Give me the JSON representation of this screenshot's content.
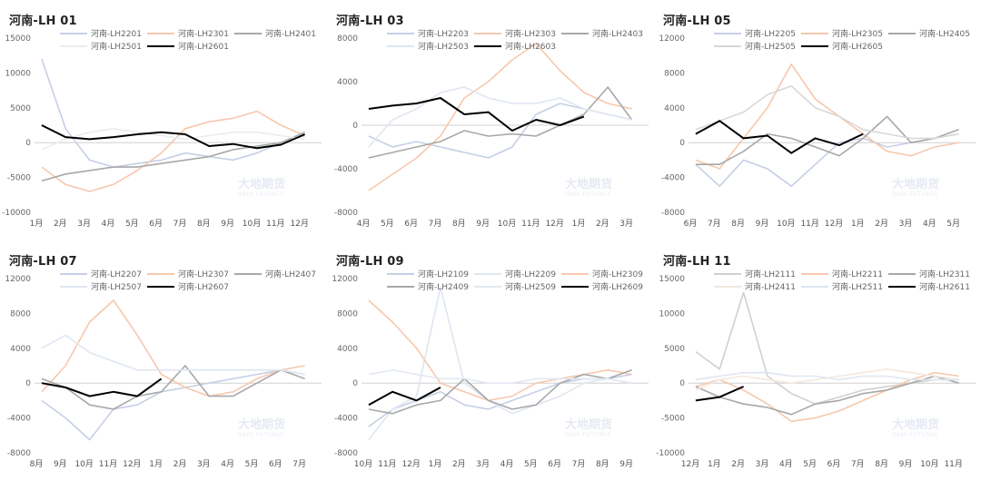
{
  "series_styles": {
    "2201": {
      "color": "#c5cfe6"
    },
    "2301": {
      "color": "#f6c8ad"
    },
    "2401": {
      "color": "#a8a8a8"
    },
    "2501": {
      "color": "#ececec"
    },
    "2601": {
      "color": "#000000"
    },
    "2203": {
      "color": "#c5cfe6"
    },
    "2303": {
      "color": "#f6c8ad"
    },
    "2403": {
      "color": "#a8a8a8"
    },
    "2503": {
      "color": "#dfe6f2"
    },
    "2603": {
      "color": "#000000"
    },
    "2205": {
      "color": "#c5cfe6"
    },
    "2305": {
      "color": "#f6c8ad"
    },
    "2405": {
      "color": "#a8a8a8"
    },
    "2505": {
      "color": "#d8d8d8"
    },
    "2605": {
      "color": "#000000"
    },
    "2207": {
      "color": "#c5cfe6"
    },
    "2307": {
      "color": "#f6c8ad"
    },
    "2407": {
      "color": "#a8a8a8"
    },
    "2507": {
      "color": "#dfe6f2"
    },
    "2607": {
      "color": "#000000"
    },
    "2109": {
      "color": "#c5cfe6"
    },
    "2209": {
      "color": "#dfe6f2"
    },
    "2309": {
      "color": "#f6c8ad"
    },
    "2409": {
      "color": "#a8a8a8"
    },
    "2509": {
      "color": "#e2e8f2"
    },
    "2609": {
      "color": "#000000"
    },
    "2111": {
      "color": "#d0d0d0"
    },
    "2211": {
      "color": "#f6c8ad"
    },
    "2311": {
      "color": "#a8a8a8"
    },
    "2411": {
      "color": "#f3e8de"
    },
    "2511": {
      "color": "#dfe6f2"
    },
    "2611": {
      "color": "#000000"
    }
  },
  "watermark": {
    "cn": "大地期货",
    "en": "DADI FUTURES"
  },
  "chart_data": [
    {
      "type": "line",
      "title": "河南-LH 01",
      "categories": [
        "1月",
        "2月",
        "3月",
        "4月",
        "5月",
        "6月",
        "7月",
        "8月",
        "9月",
        "10月",
        "11月",
        "12月"
      ],
      "ylim": [
        -10000,
        15000
      ],
      "yticks": [
        15000,
        10000,
        5000,
        0,
        -5000,
        -10000
      ],
      "ytick_labels": [
        "15000",
        "10000",
        "5000",
        "0",
        "-5000",
        "-10000"
      ],
      "series": [
        {
          "name": "河南-LH2201",
          "key": "2201",
          "values": [
            12000,
            2000,
            -2500,
            -3500,
            -3000,
            -2500,
            -1500,
            -2000,
            -2500,
            -1500,
            0,
            1000
          ]
        },
        {
          "name": "河南-LH2301",
          "key": "2301",
          "values": [
            -3500,
            -6000,
            -7000,
            -6000,
            -4000,
            -1500,
            2000,
            3000,
            3500,
            4500,
            2500,
            1000
          ]
        },
        {
          "name": "河南-LH2401",
          "key": "2401",
          "values": [
            -5500,
            -4500,
            -4000,
            -3500,
            -3500,
            -3000,
            -2500,
            -2000,
            -1000,
            -500,
            0,
            1500
          ]
        },
        {
          "name": "河南-LH2501",
          "key": "2501",
          "values": [
            -1000,
            500,
            1500,
            2000,
            1500,
            1000,
            500,
            1000,
            1500,
            1500,
            1000,
            500
          ]
        },
        {
          "name": "河南-LH2601",
          "key": "2601",
          "values": [
            2500,
            800,
            500,
            800,
            1200,
            1500,
            1200,
            -500,
            -200,
            -800,
            -300,
            1200
          ]
        }
      ]
    },
    {
      "type": "line",
      "title": "河南-LH 03",
      "categories": [
        "4月",
        "5月",
        "6月",
        "7月",
        "8月",
        "9月",
        "10月",
        "11月",
        "12月",
        "1月",
        "2月",
        "3月"
      ],
      "ylim": [
        -8000,
        8000
      ],
      "yticks": [
        8000,
        4000,
        0,
        -4000,
        -8000
      ],
      "ytick_labels": [
        "8000",
        "4000",
        "0",
        "-4000",
        "-8000"
      ],
      "series": [
        {
          "name": "河南-LH2203",
          "key": "2203",
          "values": [
            -1000,
            -2000,
            -1500,
            -2000,
            -2500,
            -3000,
            -2000,
            1000,
            2000,
            1500,
            1000,
            500
          ]
        },
        {
          "name": "河南-LH2303",
          "key": "2303",
          "values": [
            -6000,
            -4500,
            -3000,
            -1000,
            2500,
            4000,
            6000,
            7500,
            5000,
            3000,
            2000,
            1500
          ]
        },
        {
          "name": "河南-LH2403",
          "key": "2403",
          "values": [
            -3000,
            -2500,
            -2000,
            -1500,
            -500,
            -1000,
            -800,
            -1000,
            0,
            1000,
            3500,
            500
          ]
        },
        {
          "name": "河南-LH2503",
          "key": "2503",
          "values": [
            -2000,
            500,
            1500,
            3000,
            3500,
            2500,
            2000,
            2000,
            2500,
            1500,
            1000,
            500
          ]
        },
        {
          "name": "河南-LH2603",
          "key": "2603",
          "values": [
            1500,
            1800,
            2000,
            2500,
            1000,
            1200,
            -500,
            500,
            0,
            800,
            null,
            null
          ]
        }
      ]
    },
    {
      "type": "line",
      "title": "河南-LH 05",
      "categories": [
        "6月",
        "7月",
        "8月",
        "9月",
        "10月",
        "11月",
        "12月",
        "1月",
        "2月",
        "3月",
        "4月",
        "5月"
      ],
      "ylim": [
        -8000,
        12000
      ],
      "yticks": [
        12000,
        8000,
        4000,
        0,
        -4000,
        -8000
      ],
      "ytick_labels": [
        "12000",
        "8000",
        "4000",
        "0",
        "-4000",
        "-8000"
      ],
      "series": [
        {
          "name": "河南-LH2205",
          "key": "2205",
          "values": [
            -2500,
            -5000,
            -2000,
            -3000,
            -5000,
            -2500,
            0,
            500,
            -500,
            0,
            500,
            1000
          ]
        },
        {
          "name": "河南-LH2305",
          "key": "2305",
          "values": [
            -2000,
            -3000,
            500,
            4000,
            9000,
            5000,
            3000,
            1000,
            -1000,
            -1500,
            -500,
            0
          ]
        },
        {
          "name": "河南-LH2405",
          "key": "2405",
          "values": [
            -2500,
            -2500,
            -1000,
            1000,
            500,
            -500,
            -1500,
            500,
            3000,
            0,
            500,
            1500
          ]
        },
        {
          "name": "河南-LH2505",
          "key": "2505",
          "values": [
            1500,
            2500,
            3500,
            5500,
            6500,
            4000,
            3000,
            1500,
            1000,
            500,
            500,
            1000
          ]
        },
        {
          "name": "河南-LH2605",
          "key": "2605",
          "values": [
            1000,
            2500,
            500,
            800,
            -1200,
            500,
            -300,
            1000,
            null,
            null,
            null,
            null
          ]
        }
      ]
    },
    {
      "type": "line",
      "title": "河南-LH 07",
      "categories": [
        "8月",
        "9月",
        "10月",
        "11月",
        "12月",
        "1月",
        "2月",
        "3月",
        "4月",
        "5月",
        "6月",
        "7月"
      ],
      "ylim": [
        -8000,
        12000
      ],
      "yticks": [
        12000,
        8000,
        4000,
        0,
        -4000,
        -8000
      ],
      "ytick_labels": [
        "12000",
        "8000",
        "4000",
        "0",
        "-4000",
        "-8000"
      ],
      "series": [
        {
          "name": "河南-LH2207",
          "key": "2207",
          "values": [
            -2000,
            -4000,
            -6500,
            -3000,
            -2500,
            -1000,
            -500,
            0,
            500,
            1000,
            1500,
            1000
          ]
        },
        {
          "name": "河南-LH2307",
          "key": "2307",
          "values": [
            -1000,
            2000,
            7000,
            9500,
            5500,
            1000,
            -500,
            -1500,
            -1000,
            500,
            1500,
            2000
          ]
        },
        {
          "name": "河南-LH2407",
          "key": "2407",
          "values": [
            500,
            -500,
            -2500,
            -3000,
            -1500,
            -1000,
            2000,
            -1500,
            -1500,
            0,
            1500,
            500
          ]
        },
        {
          "name": "河南-LH2507",
          "key": "2507",
          "values": [
            4000,
            5500,
            3500,
            2500,
            1500,
            1500,
            1500,
            1500,
            1500,
            1500,
            1500,
            1000
          ]
        },
        {
          "name": "河南-LH2607",
          "key": "2607",
          "values": [
            0,
            -500,
            -1500,
            -1000,
            -1500,
            500,
            null,
            null,
            null,
            null,
            null,
            null
          ]
        }
      ]
    },
    {
      "type": "line",
      "title": "河南-LH 09",
      "categories": [
        "10月",
        "11月",
        "12月",
        "1月",
        "2月",
        "3月",
        "4月",
        "5月",
        "6月",
        "7月",
        "8月",
        "9月"
      ],
      "ylim": [
        -8000,
        12000
      ],
      "yticks": [
        12000,
        8000,
        4000,
        0,
        -4000,
        -8000
      ],
      "ytick_labels": [
        "12000",
        "8000",
        "4000",
        "0",
        "-4000",
        "-8000"
      ],
      "series": [
        {
          "name": "河南-LH2109",
          "key": "2109",
          "values": [
            -5000,
            -3000,
            -2000,
            -1000,
            -2500,
            -3000,
            -2000,
            -1000,
            0,
            500,
            500,
            1000
          ]
        },
        {
          "name": "河南-LH2209",
          "key": "2209",
          "values": [
            -6500,
            -3000,
            -1500,
            11000,
            0,
            -2000,
            -3500,
            -2500,
            -1500,
            0,
            500,
            0
          ]
        },
        {
          "name": "河南-LH2309",
          "key": "2309",
          "values": [
            9500,
            7000,
            4000,
            0,
            -1000,
            -2000,
            -1500,
            0,
            500,
            1000,
            1500,
            1000
          ]
        },
        {
          "name": "河南-LH2409",
          "key": "2409",
          "values": [
            -3000,
            -3500,
            -2500,
            -2000,
            500,
            -2000,
            -3000,
            -2500,
            0,
            1000,
            500,
            1500
          ]
        },
        {
          "name": "河南-LH2509",
          "key": "2509",
          "values": [
            1000,
            1500,
            1000,
            500,
            500,
            0,
            0,
            500,
            500,
            500,
            500,
            0
          ]
        },
        {
          "name": "河南-LH2609",
          "key": "2609",
          "values": [
            -2500,
            -1000,
            -2000,
            -500,
            null,
            null,
            null,
            null,
            null,
            null,
            null,
            null
          ]
        }
      ]
    },
    {
      "type": "line",
      "title": "河南-LH 11",
      "categories": [
        "12月",
        "1月",
        "2月",
        "3月",
        "4月",
        "5月",
        "6月",
        "7月",
        "8月",
        "9月",
        "10月",
        "11月"
      ],
      "ylim": [
        -10000,
        15000
      ],
      "yticks": [
        15000,
        10000,
        5000,
        0,
        -5000,
        -10000
      ],
      "ytick_labels": [
        "15000",
        "10000",
        "5000",
        "0",
        "-5000",
        "-10000"
      ],
      "series": [
        {
          "name": "河南-LH2111",
          "key": "2111",
          "values": [
            4500,
            2000,
            13000,
            1000,
            -1500,
            -3000,
            -2000,
            -1000,
            -500,
            0,
            500,
            500
          ]
        },
        {
          "name": "河南-LH2211",
          "key": "2211",
          "values": [
            -500,
            500,
            -1000,
            -3000,
            -5500,
            -5000,
            -4000,
            -2500,
            -1000,
            500,
            1500,
            1000
          ]
        },
        {
          "name": "河南-LH2311",
          "key": "2311",
          "values": [
            -500,
            -2000,
            -3000,
            -3500,
            -4500,
            -3000,
            -2500,
            -1500,
            -1000,
            0,
            1000,
            0
          ]
        },
        {
          "name": "河南-LH2411",
          "key": "2411",
          "values": [
            -1000,
            500,
            1000,
            500,
            0,
            500,
            1000,
            1500,
            2000,
            1500,
            1000,
            500
          ]
        },
        {
          "name": "河南-LH2511",
          "key": "2511",
          "values": [
            500,
            1000,
            1500,
            1500,
            1000,
            1000,
            500,
            1000,
            1000,
            500,
            500,
            500
          ]
        },
        {
          "name": "河南-LH2611",
          "key": "2611",
          "values": [
            -2500,
            -2000,
            -500,
            null,
            null,
            null,
            null,
            null,
            null,
            null,
            null,
            null
          ]
        }
      ]
    }
  ]
}
